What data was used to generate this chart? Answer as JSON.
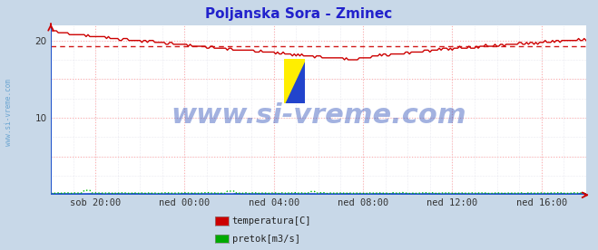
{
  "title": "Poljanska Sora - Zminec",
  "title_color": "#2222cc",
  "title_fontsize": 11,
  "bg_color": "#c8d8e8",
  "plot_bg_color": "#ffffff",
  "border_color_left": "#2255cc",
  "border_color_bottom": "#2255cc",
  "grid_color_major": "#ffb0b0",
  "grid_color_minor": "#ccccdd",
  "watermark": "www.si-vreme.com",
  "watermark_color": "#3355bb",
  "watermark_alpha": 0.45,
  "watermark_fontsize": 22,
  "xlim": [
    0,
    288
  ],
  "ylim": [
    0,
    22
  ],
  "yticks": [
    10,
    20
  ],
  "xtick_labels": [
    "sob 20:00",
    "ned 00:00",
    "ned 04:00",
    "ned 08:00",
    "ned 12:00",
    "ned 16:00"
  ],
  "xtick_positions": [
    24,
    72,
    120,
    168,
    216,
    264
  ],
  "avg_line_y": 19.2,
  "avg_line_color": "#cc0000",
  "temp_color": "#cc0000",
  "pretok_color": "#00bb00",
  "visina_color": "#2255cc",
  "legend_labels": [
    "temperatura[C]",
    "pretok[m3/s]"
  ],
  "legend_colors": [
    "#cc0000",
    "#00aa00"
  ],
  "sidebar_text": "www.si-vreme.com",
  "sidebar_color": "#5599cc",
  "arrow_color": "#cc0000"
}
